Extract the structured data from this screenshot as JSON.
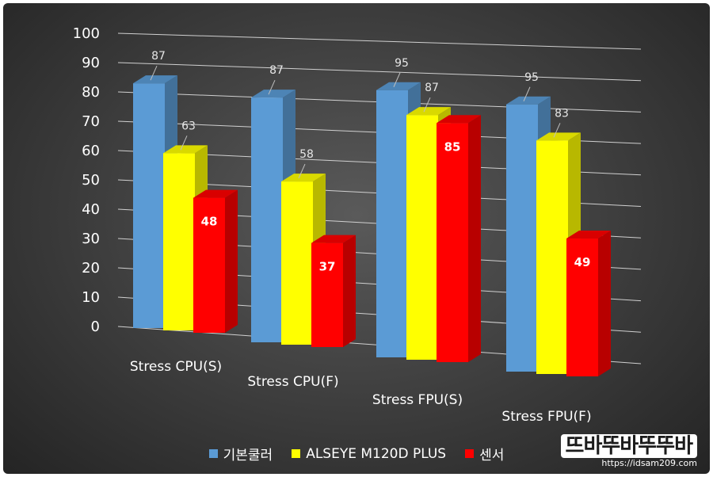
{
  "chart_data": {
    "type": "bar",
    "categories": [
      "Stress CPU(S)",
      "Stress CPU(F)",
      "Stress FPU(S)",
      "Stress FPU(F)"
    ],
    "series": [
      {
        "name": "기본쿨러",
        "values": [
          87,
          87,
          95,
          95
        ],
        "color": "#5b9bd5"
      },
      {
        "name": "ALSEYE M120D PLUS",
        "values": [
          63,
          58,
          87,
          83
        ],
        "color": "#ffff00"
      },
      {
        "name": "센서",
        "values": [
          48,
          37,
          85,
          49
        ],
        "color": "#ff0000"
      }
    ],
    "ylim": [
      0,
      100
    ],
    "y_ticks": [
      0,
      10,
      20,
      30,
      40,
      50,
      60,
      70,
      80,
      90,
      100
    ],
    "grid": true,
    "legend": "bottom",
    "style": "3d-clustered-column"
  },
  "watermark": {
    "logo_text": "뜨바뚜바뚜뚜바",
    "url": "https://idsam209.com"
  }
}
